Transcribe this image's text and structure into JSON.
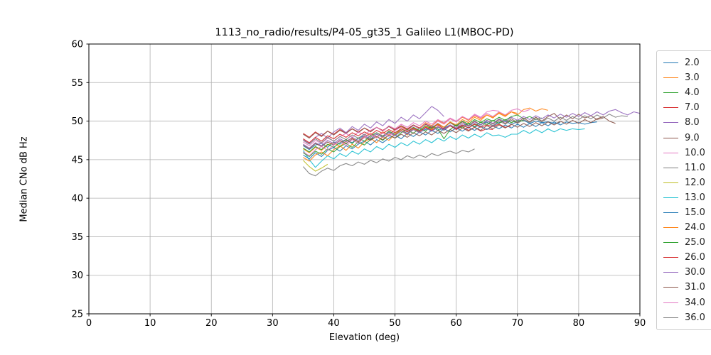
{
  "chart_data": {
    "type": "line",
    "title": "1113_no_radio/results/P4-05_gt35_1 Galileo L1(MBOC-PD)",
    "xlabel": "Elevation (deg)",
    "ylabel": "Median CNo dB Hz",
    "xlim": [
      0,
      90
    ],
    "ylim": [
      25,
      60
    ],
    "xticks": [
      0,
      10,
      20,
      30,
      40,
      50,
      60,
      70,
      80,
      90
    ],
    "yticks": [
      25,
      30,
      35,
      40,
      45,
      50,
      55,
      60
    ],
    "grid": true,
    "grid_color": "#b0b0b0",
    "legend_position": "right",
    "series": [
      {
        "name": "2.0",
        "color": "#1f77b4",
        "x0": 35,
        "dx": 1,
        "values": [
          46.8,
          46.3,
          46.9,
          47.1,
          46.6,
          47.3,
          47.0,
          47.6,
          47.2,
          47.8,
          48.1,
          47.6,
          48.3,
          47.9,
          48.5,
          48.2,
          48.8,
          48.4,
          49.0,
          48.6,
          48.9,
          49.3,
          48.8,
          49.1,
          49.5,
          49.0,
          49.4,
          49.7,
          49.2,
          49.6,
          49.9,
          49.4,
          49.8,
          50.0,
          49.6,
          49.9,
          50.1,
          49.7,
          50.0,
          49.8,
          49.9,
          49.7,
          49.8
        ]
      },
      {
        "name": "3.0",
        "color": "#ff7f0e",
        "x0": 35,
        "dx": 1,
        "values": [
          46.4,
          45.9,
          46.6,
          46.2,
          46.9,
          47.2,
          46.7,
          47.4,
          47.8,
          47.3,
          48.0,
          48.4,
          47.9,
          48.6,
          48.2,
          48.9,
          49.3,
          48.8,
          49.5,
          49.1,
          49.8,
          49.4,
          50.1,
          49.7,
          50.3,
          49.9,
          50.5,
          50.1,
          50.7,
          50.3,
          50.8,
          50.5,
          51.0,
          50.6,
          51.2,
          50.8,
          51.5,
          51.7,
          51.3,
          51.6,
          51.4
        ]
      },
      {
        "name": "4.0",
        "color": "#2ca02c",
        "x0": 35,
        "dx": 1,
        "values": [
          46.5,
          46.0,
          46.7,
          46.3,
          47.0,
          46.6,
          47.2,
          47.6,
          47.1,
          47.8,
          47.4,
          48.1,
          48.5,
          48.0,
          48.7,
          48.3,
          49.0,
          48.6,
          49.2,
          48.8,
          49.4,
          49.0,
          49.6,
          49.2,
          49.8,
          49.4,
          50.0,
          49.6,
          50.2,
          49.8,
          50.3,
          50.0,
          50.5,
          50.1,
          50.6,
          50.8,
          50.3,
          50.6,
          50.2,
          50.4
        ]
      },
      {
        "name": "7.0",
        "color": "#d62728",
        "x0": 35,
        "dx": 1,
        "values": [
          48.4,
          47.9,
          48.6,
          48.1,
          48.7,
          48.3,
          48.9,
          48.5,
          49.0,
          48.6,
          49.1,
          48.7,
          49.2,
          48.8,
          49.3,
          48.9,
          49.4,
          49.0,
          49.5,
          49.1,
          49.6,
          49.2,
          49.5,
          49.0,
          49.4,
          48.9,
          49.3,
          48.8,
          49.2,
          48.7,
          49.0,
          48.9
        ]
      },
      {
        "name": "8.0",
        "color": "#9467bd",
        "x0": 35,
        "dx": 1,
        "values": [
          47.6,
          47.1,
          47.9,
          48.4,
          47.8,
          48.6,
          49.1,
          48.5,
          49.3,
          48.8,
          49.6,
          49.1,
          49.9,
          49.4,
          50.2,
          49.7,
          50.5,
          50.0,
          50.8,
          50.3,
          51.1,
          51.9,
          51.4,
          50.6
        ]
      },
      {
        "name": "9.0",
        "color": "#8c564b",
        "x0": 35,
        "dx": 1,
        "values": [
          48.3,
          47.8,
          48.5,
          48.0,
          48.7,
          48.2,
          48.8,
          48.4,
          49.0,
          48.5,
          49.1,
          48.6,
          49.2,
          48.7,
          49.3,
          48.8,
          49.4,
          48.9,
          49.5,
          49.0,
          49.6,
          49.1,
          49.7,
          49.2,
          49.8,
          49.3,
          49.9,
          49.4,
          50.0,
          49.5,
          50.1,
          49.6,
          50.2,
          49.7,
          50.3,
          49.8,
          50.4,
          49.9,
          50.5,
          50.0,
          50.6,
          51.0,
          50.2,
          50.8,
          50.3,
          50.9,
          50.4,
          50.7,
          50.2,
          50.4
        ]
      },
      {
        "name": "10.0",
        "color": "#e377c2",
        "x0": 35,
        "dx": 1,
        "values": [
          47.3,
          46.8,
          47.5,
          47.1,
          47.8,
          47.4,
          48.0,
          48.4,
          47.9,
          48.6,
          48.2,
          48.8,
          49.2,
          48.7,
          49.4,
          49.0,
          49.6,
          49.2,
          49.8,
          49.4,
          50.0,
          49.6,
          50.2,
          49.8,
          50.4,
          50.0,
          50.6,
          50.2,
          50.8,
          50.4,
          51.0,
          50.6,
          51.2,
          50.8,
          51.4,
          51.6,
          51.2,
          51.5
        ]
      },
      {
        "name": "11.0",
        "color": "#7f7f7f",
        "x0": 35,
        "dx": 1,
        "values": [
          47.5,
          47.0,
          47.7,
          47.2,
          47.9,
          47.4,
          48.0,
          47.6,
          48.2,
          47.8,
          48.3,
          47.9,
          48.5,
          48.1,
          48.6,
          48.2,
          48.8,
          48.4,
          48.9,
          48.5,
          49.1,
          48.7,
          49.2,
          48.8,
          49.4,
          49.0,
          49.5,
          49.1,
          49.7,
          49.3,
          49.8,
          49.4,
          50.0,
          49.6,
          50.1,
          49.7,
          50.2,
          49.8,
          50.3,
          49.9,
          50.4,
          50.0,
          50.5,
          50.1,
          50.6,
          50.2,
          50.7,
          50.3,
          50.8,
          50.4,
          50.9,
          50.5,
          50.7,
          50.6
        ]
      },
      {
        "name": "12.0",
        "color": "#bcbd22",
        "x0": 35,
        "dx": 1,
        "values": [
          44.9,
          44.1,
          43.5,
          43.9,
          44.4
        ]
      },
      {
        "name": "13.0",
        "color": "#17becf",
        "x0": 35,
        "dx": 1,
        "values": [
          46.2,
          45.0,
          44.0,
          44.8,
          45.5,
          45.1,
          45.8,
          45.4,
          46.1,
          45.7,
          46.4,
          46.0,
          46.7,
          46.3,
          47.0,
          46.6,
          47.2,
          46.8,
          47.4,
          47.0,
          47.6,
          47.2,
          47.8,
          47.4,
          48.0,
          47.6,
          48.2,
          47.8,
          48.3,
          47.9,
          48.5,
          48.1,
          48.2,
          47.9,
          48.3,
          48.3,
          48.8,
          48.4,
          48.9,
          48.5,
          49.0,
          48.6,
          49.0,
          48.8,
          49.0,
          48.9,
          49.0
        ]
      },
      {
        "name": "15.0",
        "color": "#1f77b4",
        "x0": 35,
        "dx": 1,
        "values": [
          45.6,
          45.1,
          45.9,
          45.4,
          46.2,
          46.6,
          46.1,
          46.8,
          46.4,
          47.0,
          47.4,
          46.9,
          47.6,
          47.2,
          47.8,
          48.2,
          47.7,
          48.4,
          48.0,
          48.6,
          48.2,
          48.8,
          48.4,
          49.0,
          48.6,
          49.1,
          48.7,
          49.2,
          48.8,
          49.3,
          48.9,
          49.4,
          49.0,
          49.5,
          49.1,
          49.6,
          49.2,
          49.7,
          49.3,
          49.8,
          49.4,
          49.9,
          49.5,
          49.9,
          49.7,
          49.8,
          49.6,
          49.8,
          49.9
        ]
      },
      {
        "name": "24.0",
        "color": "#ff7f0e",
        "x0": 35,
        "dx": 1,
        "values": [
          45.3,
          44.8,
          45.6,
          46.0,
          45.5,
          46.3,
          46.8,
          46.2,
          47.0,
          46.5,
          47.3,
          47.8,
          47.2,
          48.0,
          47.5,
          48.3,
          48.8,
          48.2,
          49.0,
          48.5,
          49.3,
          48.9,
          49.6,
          49.2,
          49.9,
          49.5,
          50.2,
          49.8,
          50.5,
          50.1,
          50.8,
          50.4,
          51.1,
          50.7,
          51.2,
          51.0
        ]
      },
      {
        "name": "25.0",
        "color": "#2ca02c",
        "x0": 35,
        "dx": 1,
        "values": [
          45.9,
          45.4,
          46.1,
          45.7,
          46.4,
          46.0,
          46.7,
          47.1,
          46.6,
          47.3,
          46.9,
          47.6,
          48.0,
          47.5,
          48.2,
          47.8,
          48.5,
          48.9,
          48.4,
          49.1,
          48.7,
          49.4,
          49.0,
          47.7,
          48.9,
          49.5,
          49.1,
          49.7,
          49.3,
          49.9,
          49.5,
          50.1,
          49.7,
          50.2,
          49.8,
          50.1,
          50.0
        ]
      },
      {
        "name": "26.0",
        "color": "#d62728",
        "x0": 35,
        "dx": 1,
        "values": [
          47.7,
          47.2,
          47.9,
          47.4,
          48.1,
          47.7,
          48.3,
          47.9,
          48.5,
          48.1,
          48.6,
          48.2,
          48.8,
          48.4,
          48.9,
          48.5,
          49.0,
          48.6,
          49.1,
          48.7,
          49.2,
          48.8,
          49.3,
          48.9,
          49.4,
          49.0,
          49.5,
          49.1,
          49.6,
          49.2,
          49.5,
          49.3,
          49.6,
          49.2,
          49.4
        ]
      },
      {
        "name": "30.0",
        "color": "#9467bd",
        "x0": 35,
        "dx": 1,
        "values": [
          47.0,
          46.5,
          47.2,
          46.8,
          47.5,
          47.1,
          47.7,
          47.3,
          47.9,
          47.5,
          48.1,
          47.7,
          48.3,
          47.9,
          48.5,
          48.1,
          48.7,
          48.3,
          48.9,
          48.5,
          49.1,
          48.7,
          49.3,
          48.9,
          49.5,
          49.1,
          49.7,
          49.3,
          49.9,
          49.5,
          50.1,
          49.7,
          50.3,
          49.9,
          50.5,
          50.1,
          50.6,
          50.2,
          50.7,
          50.3,
          50.8,
          50.4,
          50.9,
          50.5,
          51.0,
          50.6,
          51.1,
          50.7,
          51.2,
          50.8,
          51.3,
          51.5,
          51.1,
          50.8,
          51.2,
          51.0
        ]
      },
      {
        "name": "31.0",
        "color": "#8c564b",
        "x0": 35,
        "dx": 1,
        "values": [
          46.9,
          46.4,
          47.1,
          46.7,
          47.3,
          46.9,
          47.5,
          47.1,
          47.7,
          47.3,
          47.9,
          47.5,
          48.0,
          47.6,
          48.2,
          47.8,
          48.3,
          47.9,
          48.5,
          48.1,
          48.6,
          48.2,
          48.8,
          48.4,
          48.9,
          48.5,
          49.1,
          48.7,
          49.2,
          48.8,
          49.4,
          49.0,
          49.5,
          49.1,
          49.6,
          49.2,
          49.7,
          49.3,
          49.8,
          49.4,
          49.9,
          49.5,
          50.0,
          49.6,
          50.1,
          49.7,
          50.2,
          49.8,
          50.3,
          50.6,
          50.0,
          49.7
        ]
      },
      {
        "name": "34.0",
        "color": "#e377c2",
        "x0": 35,
        "dx": 1,
        "values": [
          46.0,
          45.5,
          46.3,
          46.7,
          46.2,
          46.9,
          47.4,
          46.8,
          47.6,
          47.1,
          47.9,
          48.3,
          47.8,
          48.5,
          48.0,
          48.8,
          49.2,
          48.7,
          49.4,
          49.0,
          49.7,
          49.3,
          50.0,
          49.6,
          50.3,
          49.9,
          50.6,
          50.2,
          50.9,
          50.5,
          51.2,
          51.4,
          51.3
        ]
      },
      {
        "name": "36.0",
        "color": "#7f7f7f",
        "x0": 35,
        "dx": 1,
        "values": [
          44.1,
          43.2,
          42.9,
          43.5,
          43.9,
          43.6,
          44.2,
          44.5,
          44.2,
          44.7,
          44.4,
          44.9,
          44.6,
          45.1,
          44.8,
          45.3,
          45.0,
          45.5,
          45.2,
          45.6,
          45.3,
          45.8,
          45.5,
          45.9,
          46.1,
          45.8,
          46.2,
          46.0,
          46.4
        ]
      }
    ]
  }
}
